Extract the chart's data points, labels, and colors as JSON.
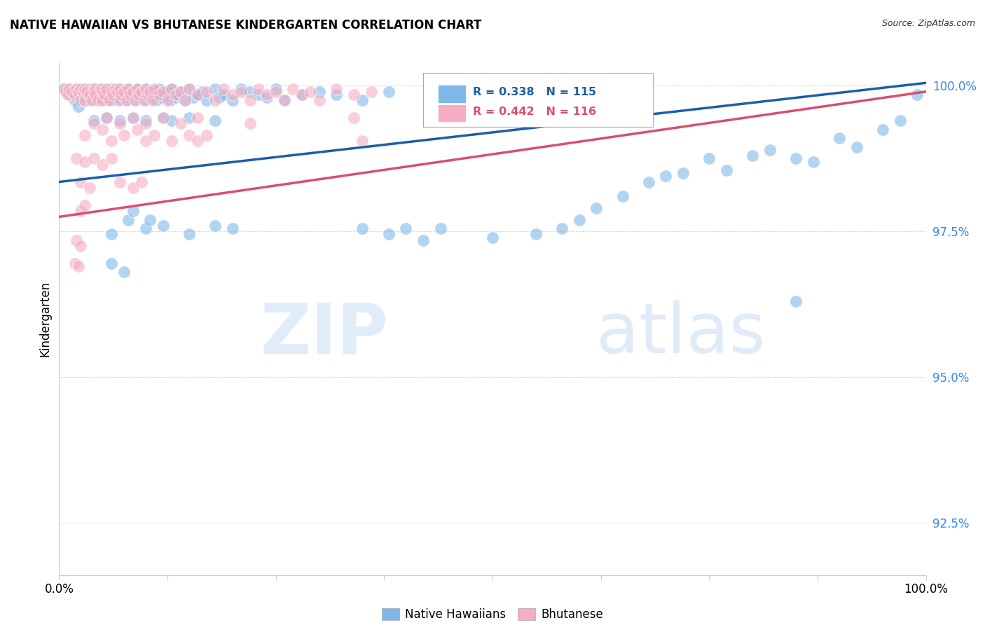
{
  "title": "NATIVE HAWAIIAN VS BHUTANESE KINDERGARTEN CORRELATION CHART",
  "source": "Source: ZipAtlas.com",
  "ylabel": "Kindergarten",
  "xlim": [
    0.0,
    1.0
  ],
  "ylim": [
    0.916,
    1.004
  ],
  "yticks": [
    0.925,
    0.95,
    0.975,
    1.0
  ],
  "ytick_labels": [
    "92.5%",
    "95.0%",
    "97.5%",
    "100.0%"
  ],
  "xticks": [
    0.0,
    0.125,
    0.25,
    0.375,
    0.5,
    0.625,
    0.75,
    0.875,
    1.0
  ],
  "xtick_labels": [
    "0.0%",
    "",
    "",
    "",
    "",
    "",
    "",
    "",
    "100.0%"
  ],
  "blue_color": "#7eb8e8",
  "pink_color": "#f5adc2",
  "blue_line_color": "#1a5fa8",
  "pink_line_color": "#d94f6e",
  "ytick_color": "#3388ee",
  "legend_blue_label": "Native Hawaiians",
  "legend_pink_label": "Bhutanese",
  "R_blue": 0.338,
  "N_blue": 115,
  "R_pink": 0.442,
  "N_pink": 116,
  "watermark_zip": "ZIP",
  "watermark_atlas": "atlas",
  "background_color": "#ffffff",
  "blue_scatter": [
    [
      0.005,
      0.9995
    ],
    [
      0.01,
      0.9995
    ],
    [
      0.012,
      0.9985
    ],
    [
      0.015,
      0.999
    ],
    [
      0.018,
      0.9975
    ],
    [
      0.02,
      0.9995
    ],
    [
      0.02,
      0.998
    ],
    [
      0.022,
      0.9965
    ],
    [
      0.025,
      0.9995
    ],
    [
      0.025,
      0.998
    ],
    [
      0.028,
      0.9985
    ],
    [
      0.03,
      0.999
    ],
    [
      0.032,
      0.9975
    ],
    [
      0.035,
      0.9995
    ],
    [
      0.035,
      0.998
    ],
    [
      0.038,
      0.9985
    ],
    [
      0.04,
      0.999
    ],
    [
      0.04,
      0.9975
    ],
    [
      0.042,
      0.9995
    ],
    [
      0.045,
      0.998
    ],
    [
      0.048,
      0.9985
    ],
    [
      0.05,
      0.9995
    ],
    [
      0.05,
      0.9975
    ],
    [
      0.052,
      0.999
    ],
    [
      0.055,
      0.9985
    ],
    [
      0.058,
      0.998
    ],
    [
      0.06,
      0.9995
    ],
    [
      0.06,
      0.9975
    ],
    [
      0.062,
      0.9985
    ],
    [
      0.065,
      0.999
    ],
    [
      0.068,
      0.9975
    ],
    [
      0.07,
      0.9995
    ],
    [
      0.07,
      0.998
    ],
    [
      0.072,
      0.9985
    ],
    [
      0.075,
      0.999
    ],
    [
      0.078,
      0.9975
    ],
    [
      0.08,
      0.9995
    ],
    [
      0.08,
      0.998
    ],
    [
      0.082,
      0.9985
    ],
    [
      0.085,
      0.999
    ],
    [
      0.088,
      0.9975
    ],
    [
      0.09,
      0.9995
    ],
    [
      0.092,
      0.998
    ],
    [
      0.095,
      0.9985
    ],
    [
      0.098,
      0.999
    ],
    [
      0.1,
      0.9975
    ],
    [
      0.1,
      0.9995
    ],
    [
      0.105,
      0.998
    ],
    [
      0.108,
      0.9985
    ],
    [
      0.11,
      0.999
    ],
    [
      0.112,
      0.9975
    ],
    [
      0.115,
      0.9995
    ],
    [
      0.118,
      0.998
    ],
    [
      0.12,
      0.9985
    ],
    [
      0.125,
      0.999
    ],
    [
      0.128,
      0.9975
    ],
    [
      0.13,
      0.9995
    ],
    [
      0.135,
      0.998
    ],
    [
      0.138,
      0.9985
    ],
    [
      0.14,
      0.999
    ],
    [
      0.145,
      0.9975
    ],
    [
      0.15,
      0.9995
    ],
    [
      0.155,
      0.998
    ],
    [
      0.16,
      0.9985
    ],
    [
      0.165,
      0.999
    ],
    [
      0.17,
      0.9975
    ],
    [
      0.18,
      0.9995
    ],
    [
      0.185,
      0.998
    ],
    [
      0.19,
      0.9985
    ],
    [
      0.2,
      0.9975
    ],
    [
      0.21,
      0.9995
    ],
    [
      0.22,
      0.999
    ],
    [
      0.23,
      0.9985
    ],
    [
      0.24,
      0.998
    ],
    [
      0.25,
      0.9995
    ],
    [
      0.26,
      0.9975
    ],
    [
      0.28,
      0.9985
    ],
    [
      0.3,
      0.999
    ],
    [
      0.32,
      0.9985
    ],
    [
      0.35,
      0.9975
    ],
    [
      0.38,
      0.999
    ],
    [
      0.04,
      0.994
    ],
    [
      0.055,
      0.9945
    ],
    [
      0.07,
      0.994
    ],
    [
      0.085,
      0.9945
    ],
    [
      0.1,
      0.994
    ],
    [
      0.12,
      0.9945
    ],
    [
      0.13,
      0.994
    ],
    [
      0.15,
      0.9945
    ],
    [
      0.18,
      0.994
    ],
    [
      0.06,
      0.9745
    ],
    [
      0.08,
      0.977
    ],
    [
      0.085,
      0.9785
    ],
    [
      0.1,
      0.9755
    ],
    [
      0.105,
      0.977
    ],
    [
      0.12,
      0.976
    ],
    [
      0.15,
      0.9745
    ],
    [
      0.18,
      0.976
    ],
    [
      0.2,
      0.9755
    ],
    [
      0.35,
      0.9755
    ],
    [
      0.38,
      0.9745
    ],
    [
      0.4,
      0.9755
    ],
    [
      0.42,
      0.9735
    ],
    [
      0.44,
      0.9755
    ],
    [
      0.5,
      0.974
    ],
    [
      0.55,
      0.9745
    ],
    [
      0.58,
      0.9755
    ],
    [
      0.06,
      0.9695
    ],
    [
      0.075,
      0.968
    ],
    [
      0.6,
      0.977
    ],
    [
      0.62,
      0.979
    ],
    [
      0.65,
      0.981
    ],
    [
      0.68,
      0.9835
    ],
    [
      0.7,
      0.9845
    ],
    [
      0.72,
      0.985
    ],
    [
      0.75,
      0.9875
    ],
    [
      0.77,
      0.9855
    ],
    [
      0.8,
      0.988
    ],
    [
      0.82,
      0.989
    ],
    [
      0.85,
      0.9875
    ],
    [
      0.87,
      0.987
    ],
    [
      0.9,
      0.991
    ],
    [
      0.92,
      0.9895
    ],
    [
      0.95,
      0.9925
    ],
    [
      0.97,
      0.994
    ],
    [
      0.99,
      0.9985
    ],
    [
      0.85,
      0.963
    ]
  ],
  "pink_scatter": [
    [
      0.005,
      0.9995
    ],
    [
      0.008,
      0.999
    ],
    [
      0.01,
      0.9985
    ],
    [
      0.012,
      0.9995
    ],
    [
      0.015,
      0.999
    ],
    [
      0.018,
      0.9985
    ],
    [
      0.02,
      0.9995
    ],
    [
      0.022,
      0.999
    ],
    [
      0.025,
      0.9975
    ],
    [
      0.025,
      0.9995
    ],
    [
      0.028,
      0.999
    ],
    [
      0.03,
      0.9975
    ],
    [
      0.03,
      0.9995
    ],
    [
      0.032,
      0.999
    ],
    [
      0.035,
      0.9985
    ],
    [
      0.038,
      0.9975
    ],
    [
      0.04,
      0.9995
    ],
    [
      0.04,
      0.999
    ],
    [
      0.042,
      0.9985
    ],
    [
      0.045,
      0.9975
    ],
    [
      0.048,
      0.9995
    ],
    [
      0.05,
      0.999
    ],
    [
      0.05,
      0.9975
    ],
    [
      0.052,
      0.9985
    ],
    [
      0.055,
      0.9995
    ],
    [
      0.058,
      0.9975
    ],
    [
      0.06,
      0.999
    ],
    [
      0.062,
      0.9985
    ],
    [
      0.065,
      0.9995
    ],
    [
      0.068,
      0.999
    ],
    [
      0.07,
      0.9975
    ],
    [
      0.07,
      0.9995
    ],
    [
      0.072,
      0.9985
    ],
    [
      0.075,
      0.999
    ],
    [
      0.078,
      0.9975
    ],
    [
      0.08,
      0.9995
    ],
    [
      0.082,
      0.9985
    ],
    [
      0.085,
      0.999
    ],
    [
      0.088,
      0.9975
    ],
    [
      0.09,
      0.9995
    ],
    [
      0.092,
      0.9985
    ],
    [
      0.095,
      0.999
    ],
    [
      0.098,
      0.9975
    ],
    [
      0.1,
      0.9995
    ],
    [
      0.102,
      0.9985
    ],
    [
      0.105,
      0.999
    ],
    [
      0.108,
      0.9975
    ],
    [
      0.11,
      0.9995
    ],
    [
      0.115,
      0.9985
    ],
    [
      0.12,
      0.999
    ],
    [
      0.125,
      0.9975
    ],
    [
      0.13,
      0.9995
    ],
    [
      0.135,
      0.9985
    ],
    [
      0.14,
      0.999
    ],
    [
      0.145,
      0.9975
    ],
    [
      0.15,
      0.9995
    ],
    [
      0.16,
      0.9985
    ],
    [
      0.17,
      0.999
    ],
    [
      0.18,
      0.9975
    ],
    [
      0.19,
      0.9995
    ],
    [
      0.2,
      0.9985
    ],
    [
      0.21,
      0.999
    ],
    [
      0.22,
      0.9975
    ],
    [
      0.23,
      0.9995
    ],
    [
      0.24,
      0.9985
    ],
    [
      0.25,
      0.999
    ],
    [
      0.26,
      0.9975
    ],
    [
      0.27,
      0.9995
    ],
    [
      0.28,
      0.9985
    ],
    [
      0.29,
      0.999
    ],
    [
      0.3,
      0.9975
    ],
    [
      0.32,
      0.9995
    ],
    [
      0.34,
      0.9985
    ],
    [
      0.36,
      0.999
    ],
    [
      0.04,
      0.9935
    ],
    [
      0.055,
      0.9945
    ],
    [
      0.07,
      0.9935
    ],
    [
      0.085,
      0.9945
    ],
    [
      0.1,
      0.9935
    ],
    [
      0.12,
      0.9945
    ],
    [
      0.14,
      0.9935
    ],
    [
      0.16,
      0.9945
    ],
    [
      0.22,
      0.9935
    ],
    [
      0.34,
      0.9945
    ],
    [
      0.03,
      0.9915
    ],
    [
      0.05,
      0.9925
    ],
    [
      0.06,
      0.9905
    ],
    [
      0.075,
      0.9915
    ],
    [
      0.09,
      0.9925
    ],
    [
      0.1,
      0.9905
    ],
    [
      0.11,
      0.9915
    ],
    [
      0.13,
      0.9905
    ],
    [
      0.15,
      0.9915
    ],
    [
      0.16,
      0.9905
    ],
    [
      0.17,
      0.9915
    ],
    [
      0.35,
      0.9905
    ],
    [
      0.02,
      0.9875
    ],
    [
      0.03,
      0.987
    ],
    [
      0.04,
      0.9875
    ],
    [
      0.05,
      0.9865
    ],
    [
      0.06,
      0.9875
    ],
    [
      0.025,
      0.9835
    ],
    [
      0.035,
      0.9825
    ],
    [
      0.07,
      0.9835
    ],
    [
      0.085,
      0.9825
    ],
    [
      0.095,
      0.9835
    ],
    [
      0.025,
      0.9785
    ],
    [
      0.03,
      0.9795
    ],
    [
      0.02,
      0.9735
    ],
    [
      0.025,
      0.9725
    ],
    [
      0.018,
      0.9695
    ],
    [
      0.022,
      0.969
    ]
  ],
  "blue_trendline": [
    [
      0.0,
      0.9835
    ],
    [
      1.0,
      1.0005
    ]
  ],
  "pink_trendline": [
    [
      0.0,
      0.9775
    ],
    [
      1.0,
      0.999
    ]
  ]
}
